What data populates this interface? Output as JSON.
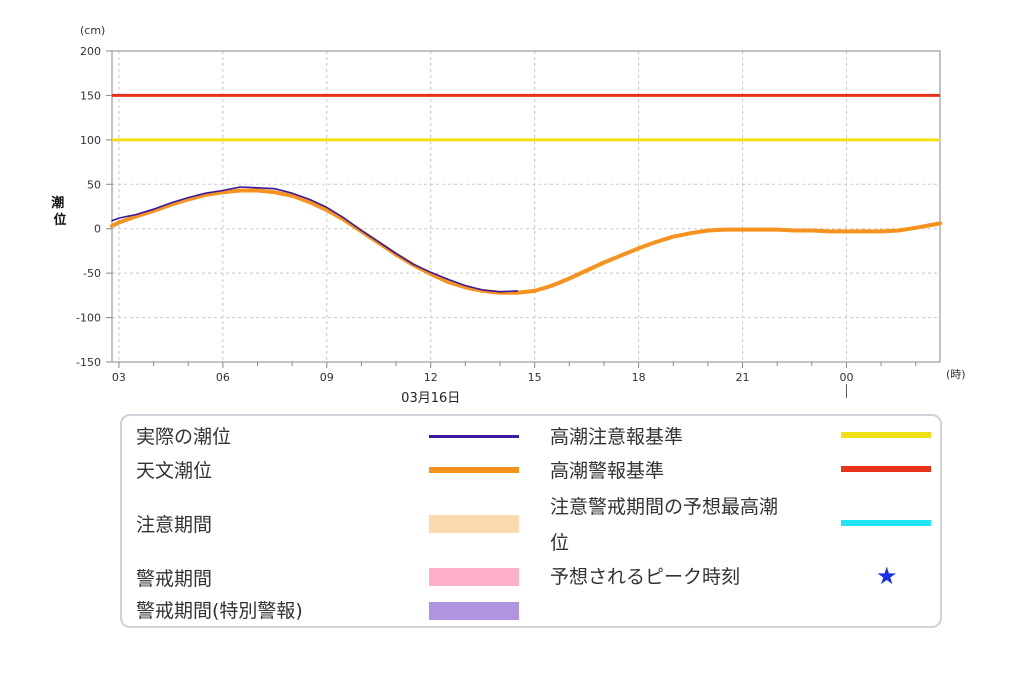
{
  "chart_data": {
    "type": "line",
    "y_unit": "(cm)",
    "x_unit": "(時)",
    "ylabel": "潮位",
    "ylim": [
      -150,
      200
    ],
    "yticks": [
      200,
      150,
      100,
      50,
      0,
      -50,
      -100,
      -150
    ],
    "xlim_hours": [
      2.8,
      26.7
    ],
    "xticks": [
      {
        "hour": 3,
        "label": "03"
      },
      {
        "hour": 6,
        "label": "06"
      },
      {
        "hour": 9,
        "label": "09"
      },
      {
        "hour": 12,
        "label": "12"
      },
      {
        "hour": 15,
        "label": "15"
      },
      {
        "hour": 18,
        "label": "18"
      },
      {
        "hour": 21,
        "label": "21"
      },
      {
        "hour": 24,
        "label": "00"
      }
    ],
    "date_label": {
      "hour": 12,
      "text": "03月16日"
    },
    "day_marker_hour": 24,
    "grid": true,
    "series": [
      {
        "name": "実際の潮位",
        "color": "#3a1a9e",
        "x": [
          2.8,
          3.0,
          3.5,
          4.0,
          4.5,
          5.0,
          5.5,
          6.0,
          6.5,
          7.0,
          7.5,
          8.0,
          8.5,
          9.0,
          9.5,
          10.0,
          10.5,
          11.0,
          11.5,
          12.0,
          12.5,
          13.0,
          13.5,
          14.0,
          14.5
        ],
        "y": [
          9,
          12,
          16,
          22,
          29,
          35,
          40,
          43,
          47,
          46,
          45,
          40,
          33,
          24,
          12,
          -2,
          -15,
          -28,
          -40,
          -49,
          -57,
          -64,
          -69,
          -71,
          -70
        ]
      },
      {
        "name": "天文潮位",
        "color": "#f6921e",
        "x": [
          2.8,
          3.0,
          3.5,
          4.0,
          4.5,
          5.0,
          5.5,
          6.0,
          6.5,
          7.0,
          7.5,
          8.0,
          8.5,
          9.0,
          9.5,
          10.0,
          10.5,
          11.0,
          11.5,
          12.0,
          12.5,
          13.0,
          13.5,
          14.0,
          14.5,
          15.0,
          15.5,
          16.0,
          16.5,
          17.0,
          17.5,
          18.0,
          18.5,
          19.0,
          19.5,
          20.0,
          20.5,
          21.0,
          21.5,
          22.0,
          22.5,
          23.0,
          23.5,
          24.0,
          24.5,
          25.0,
          25.5,
          26.0,
          26.7
        ],
        "y": [
          3,
          7,
          14,
          20,
          27,
          33,
          38,
          41,
          43,
          43,
          41,
          37,
          30,
          21,
          10,
          -3,
          -16,
          -29,
          -41,
          -51,
          -60,
          -66,
          -70,
          -72,
          -72,
          -70,
          -64,
          -56,
          -47,
          -38,
          -30,
          -22,
          -15,
          -9,
          -5,
          -2,
          -1,
          -1,
          -1,
          -1,
          -2,
          -2,
          -3,
          -3,
          -3,
          -3,
          -2,
          1,
          6
        ]
      },
      {
        "name": "高潮注意報基準",
        "color": "#f1e017",
        "y_const": 100
      },
      {
        "name": "高潮警報基準",
        "color": "#e8311a",
        "y_const": 150
      }
    ]
  },
  "legend": {
    "items": [
      {
        "label": "実際の潮位",
        "type": "line",
        "color": "#3a1a9e"
      },
      {
        "label": "天文潮位",
        "type": "line",
        "color": "#f6921e"
      },
      {
        "label": "注意期間",
        "type": "band",
        "color": "#fdd9b0"
      },
      {
        "label": "警戒期間",
        "type": "band",
        "color": "#fdb0c8"
      },
      {
        "label": "警戒期間(特別警報)",
        "type": "band",
        "color": "#b094e0"
      },
      {
        "label": "高潮注意報基準",
        "type": "line",
        "color": "#f1e017"
      },
      {
        "label": "高潮警報基準",
        "type": "line",
        "color": "#e8311a"
      },
      {
        "label_line1": "注意警戒期間の予想最高潮",
        "label_line2": "位",
        "type": "line",
        "color": "#21e6f2"
      },
      {
        "label": "予想されるピーク時刻",
        "type": "star",
        "color": "#1a2ee6",
        "symbol": "★"
      }
    ]
  }
}
